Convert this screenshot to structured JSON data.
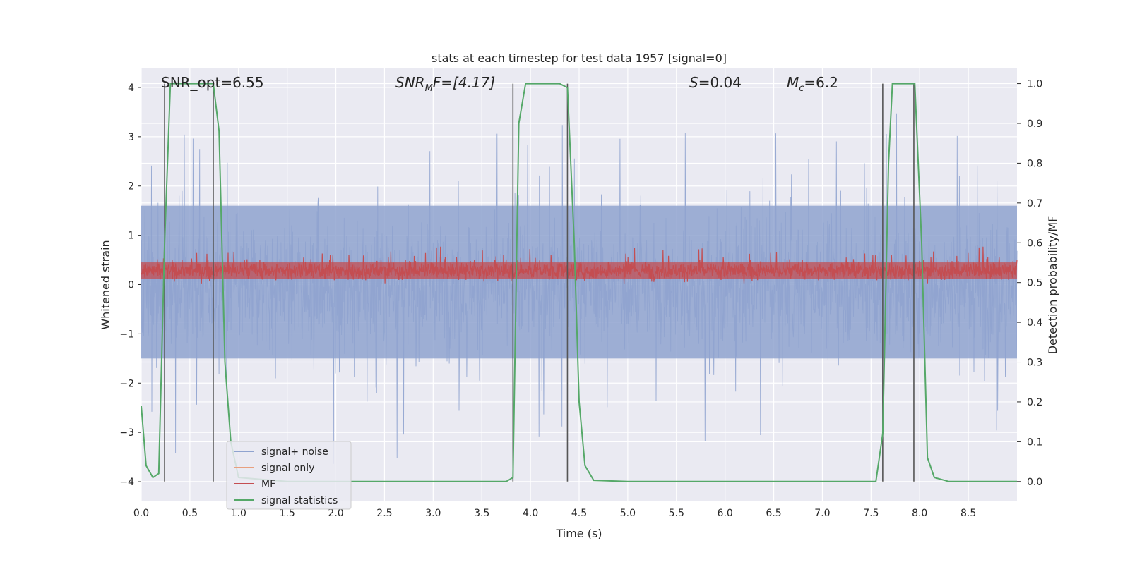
{
  "chart_data": {
    "type": "line",
    "title": "stats at each timestep for test data 1957 [signal=0]",
    "xlabel": "Time (s)",
    "ylabel": "Whitened strain",
    "ylabel_right": "Detection probability/MF",
    "xlim": [
      0,
      9.0
    ],
    "ylim": [
      -4.4,
      4.4
    ],
    "ylim_right": [
      -0.05,
      1.04
    ],
    "xticks": [
      "0.0",
      "0.5",
      "1.0",
      "1.5",
      "2.0",
      "2.5",
      "3.0",
      "3.5",
      "4.0",
      "4.5",
      "5.0",
      "5.5",
      "6.0",
      "6.5",
      "7.0",
      "7.5",
      "8.0",
      "8.5"
    ],
    "xtick_values": [
      0,
      0.5,
      1,
      1.5,
      2,
      2.5,
      3,
      3.5,
      4,
      4.5,
      5,
      5.5,
      6,
      6.5,
      7,
      7.5,
      8,
      8.5
    ],
    "yticks_left": [
      "4",
      "3",
      "2",
      "1",
      "0",
      "−1",
      "−2",
      "−3",
      "−4"
    ],
    "ytick_values_left": [
      4,
      3,
      2,
      1,
      0,
      -1,
      -2,
      -3,
      -4
    ],
    "yticks_right": [
      "1.0",
      "0.9",
      "0.8",
      "0.7",
      "0.6",
      "0.5",
      "0.4",
      "0.3",
      "0.2",
      "0.1",
      "0.0"
    ],
    "ytick_values_right": [
      1.0,
      0.9,
      0.8,
      0.7,
      0.6,
      0.5,
      0.4,
      0.3,
      0.2,
      0.1,
      0.0
    ],
    "grid": true,
    "legend_position": "lower-left",
    "annotations": {
      "snr_opt": "SNR_opt=6.55",
      "snr_mf_main": "SNR",
      "snr_mf_sub": "M",
      "snr_mf_rest": "F=[4.17]",
      "s_main": "S",
      "s_rest": "=0.04",
      "mc_main": "M",
      "mc_sub": "c",
      "mc_rest": "=6.2"
    },
    "series": [
      {
        "name": "signal+ noise",
        "color": "#8fa3cf",
        "axis": "left",
        "description_values": {
          "band_low": -1.5,
          "band_high": 1.6,
          "peak_max": 4.0,
          "peak_min": -3.8
        }
      },
      {
        "name": "signal only",
        "color": "#e8a07f",
        "axis": "left",
        "values": []
      },
      {
        "name": "MF",
        "color": "#c44e52",
        "axis": "left",
        "description_values": {
          "band_low": 0.0,
          "band_high": 0.55,
          "peak_max": 0.95
        }
      },
      {
        "name": "signal statistics",
        "color": "#55a868",
        "axis": "right",
        "x": [
          0.0,
          0.05,
          0.12,
          0.18,
          0.24,
          0.3,
          0.34,
          0.5,
          0.68,
          0.74,
          0.8,
          0.86,
          0.92,
          1.0,
          1.5,
          2.0,
          2.5,
          3.0,
          3.5,
          3.75,
          3.82,
          3.88,
          3.95,
          4.1,
          4.3,
          4.38,
          4.45,
          4.5,
          4.56,
          4.65,
          5.0,
          6.0,
          7.0,
          7.55,
          7.62,
          7.68,
          7.72,
          7.85,
          7.95,
          8.02,
          8.08,
          8.15,
          8.3,
          9.0
        ],
        "y": [
          0.19,
          0.04,
          0.01,
          0.02,
          0.6,
          1.0,
          1.0,
          1.0,
          1.0,
          1.0,
          0.88,
          0.3,
          0.1,
          0.01,
          0.0,
          0.0,
          0.0,
          0.0,
          0.0,
          0.0,
          0.01,
          0.9,
          1.0,
          1.0,
          1.0,
          0.99,
          0.6,
          0.2,
          0.04,
          0.003,
          0.0,
          0.0,
          0.0,
          0.0,
          0.12,
          0.8,
          1.0,
          1.0,
          1.0,
          0.6,
          0.06,
          0.01,
          0.0,
          0.0
        ]
      }
    ],
    "vertical_markers": {
      "color": "#555555",
      "x": [
        0.24,
        0.74,
        3.82,
        4.38,
        7.62,
        7.94
      ]
    },
    "colors": {
      "background": "#eaeaf2",
      "grid": "#ffffff",
      "text": "#262626"
    }
  }
}
